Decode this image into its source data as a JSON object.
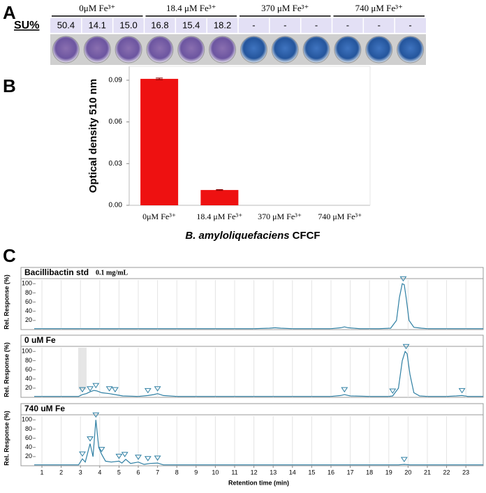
{
  "panel_labels": [
    "A",
    "B",
    "C"
  ],
  "table": {
    "row_label": "SU%",
    "groups": [
      "0μM Fe³⁺",
      "18.4 μM Fe³⁺",
      "370 μM Fe³⁺",
      "740 μM Fe³⁺"
    ],
    "values": [
      "50.4",
      "14.1",
      "15.0",
      "16.8",
      "15.4",
      "18.2",
      "-",
      "-",
      "-",
      "-",
      "-",
      "-"
    ]
  },
  "chart_data": [
    {
      "type": "bar",
      "y_label": "Optical density 510 nm",
      "x_label": [
        "B. amyloliquefaciens",
        "CFCF"
      ],
      "categories": [
        "0μM Fe³⁺",
        "18.4 μM Fe³⁺",
        "370 μM Fe³⁺",
        "740 μM Fe³⁺"
      ],
      "values": [
        0.091,
        0.011,
        0,
        0
      ],
      "errors": [
        0.0006,
        0.0003,
        0,
        0
      ],
      "color": "#ee1111",
      "ylim": [
        0,
        0.1
      ],
      "yticks": [
        {
          "value": 0,
          "label": "0.00"
        },
        0.03,
        0.06,
        0.09
      ]
    },
    {
      "type": "line",
      "title": "Bacillibactin std",
      "subtitle": "0.1 mg/mL",
      "y_label": "Rel. Response (%)",
      "xlim": [
        0.6,
        23.9
      ],
      "ylim": [
        0,
        108
      ],
      "xticks": [
        1,
        2,
        3,
        4,
        5,
        6,
        7,
        8,
        9,
        10,
        11,
        12,
        13,
        14,
        15,
        16,
        17,
        18,
        19,
        20,
        21,
        22,
        23
      ],
      "yticks": [
        20,
        40,
        60,
        80,
        100
      ],
      "grid": true,
      "color": "#2e7fa3",
      "x": [
        0.6,
        1,
        2,
        3,
        4,
        5,
        6,
        7,
        8,
        9,
        10,
        11,
        12,
        12.8,
        13.1,
        13.4,
        14,
        15,
        16,
        16.5,
        16.7,
        16.9,
        17.5,
        18.5,
        19.1,
        19.4,
        19.55,
        19.7,
        19.8,
        19.9,
        20.05,
        20.3,
        20.5,
        20.7,
        21,
        22,
        23,
        23.9
      ],
      "values": [
        2,
        2,
        2,
        2,
        2,
        2,
        2,
        2,
        2,
        2,
        2,
        2,
        2,
        3,
        4,
        3,
        2,
        2,
        2,
        4,
        6,
        4,
        2,
        2,
        3,
        20,
        70,
        100,
        98,
        70,
        20,
        5,
        4,
        3,
        2,
        2,
        2,
        2
      ],
      "markers": {
        "x": [
          19.75
        ],
        "y": [
          100
        ]
      }
    },
    {
      "type": "line",
      "title": "0 uM Fe",
      "y_label": "Rel. Response (%)",
      "xlim": [
        0.6,
        23.9
      ],
      "ylim": [
        0,
        108
      ],
      "xticks": [
        1,
        2,
        3,
        4,
        5,
        6,
        7,
        8,
        9,
        10,
        11,
        12,
        13,
        14,
        15,
        16,
        17,
        18,
        19,
        20,
        21,
        22,
        23
      ],
      "yticks": [
        20,
        40,
        60,
        80,
        100
      ],
      "grid": true,
      "color": "#2e7fa3",
      "x": [
        0.6,
        1,
        2,
        2.9,
        3.1,
        3.3,
        3.5,
        3.7,
        3.85,
        4.1,
        4.5,
        4.8,
        5.2,
        6,
        6.5,
        6.8,
        7,
        7.3,
        8,
        10,
        12,
        14,
        16,
        16.5,
        16.7,
        17,
        18,
        19,
        19.2,
        19.5,
        19.7,
        19.85,
        19.95,
        20.1,
        20.3,
        20.6,
        21,
        22,
        22.5,
        22.8,
        23.1,
        23.9
      ],
      "values": [
        2,
        2,
        2,
        2,
        6,
        8,
        12,
        15,
        14,
        10,
        8,
        6,
        3,
        2,
        4,
        6,
        8,
        4,
        2,
        2,
        2,
        2,
        2,
        4,
        6,
        3,
        2,
        2,
        3,
        20,
        80,
        100,
        95,
        50,
        10,
        3,
        2,
        2,
        3,
        4,
        2,
        2
      ],
      "markers": {
        "x": [
          3.1,
          3.5,
          3.8,
          4.5,
          4.8,
          6.5,
          7.0,
          16.7,
          19.2,
          19.9,
          22.8
        ],
        "y": [
          6,
          8,
          15,
          8,
          6,
          4,
          8,
          6,
          3,
          100,
          4
        ]
      }
    },
    {
      "type": "line",
      "title": "740 uM Fe",
      "y_label": "Rel. Response (%)",
      "x_label": "Retention time (min)",
      "xlim": [
        0.6,
        23.9
      ],
      "ylim": [
        0,
        108
      ],
      "xticks": [
        1,
        2,
        3,
        4,
        5,
        6,
        7,
        8,
        9,
        10,
        11,
        12,
        13,
        14,
        15,
        16,
        17,
        18,
        19,
        20,
        21,
        22,
        23
      ],
      "yticks": [
        20,
        40,
        60,
        80,
        100
      ],
      "grid": true,
      "color": "#2e7fa3",
      "x": [
        0.6,
        1,
        2,
        2.9,
        3.1,
        3.25,
        3.5,
        3.65,
        3.8,
        3.95,
        4.1,
        4.3,
        4.6,
        5.0,
        5.15,
        5.35,
        5.6,
        6.0,
        6.3,
        6.6,
        7.0,
        7.3,
        8,
        10,
        12,
        14,
        16,
        18,
        19.5,
        19.8,
        20.1,
        22,
        23.9
      ],
      "values": [
        2,
        2,
        2,
        2,
        15,
        8,
        48,
        20,
        100,
        40,
        25,
        10,
        8,
        10,
        6,
        14,
        5,
        8,
        3,
        5,
        6,
        2,
        2,
        2,
        2,
        2,
        2,
        2,
        2,
        3,
        2,
        2,
        2
      ],
      "markers": {
        "x": [
          3.1,
          3.5,
          3.8,
          4.1,
          5.0,
          5.3,
          6.0,
          6.5,
          7.0,
          19.8
        ],
        "y": [
          15,
          48,
          100,
          25,
          10,
          14,
          8,
          5,
          6,
          3
        ]
      }
    }
  ]
}
